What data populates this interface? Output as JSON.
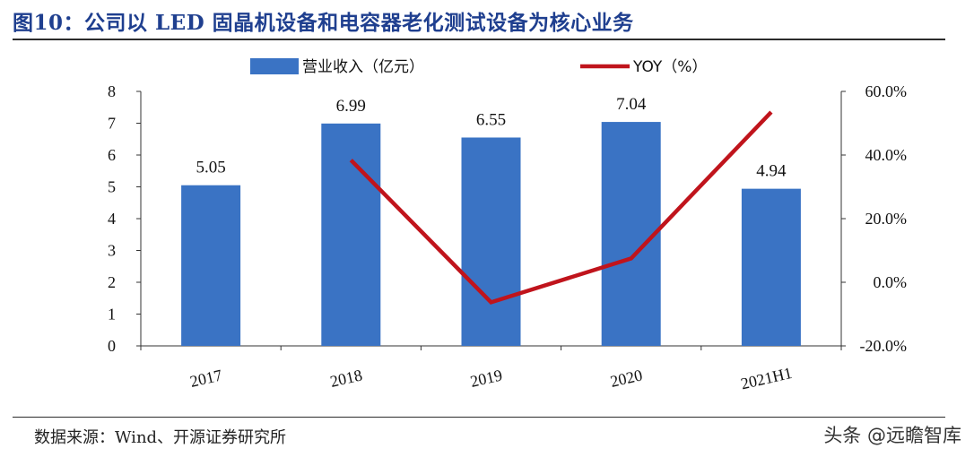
{
  "header": {
    "title": "图10：公司以 LED 固晶机设备和电容器老化测试设备为核心业务"
  },
  "footer": {
    "source": "数据来源：Wind、开源证券研究所",
    "watermark": "头条 @远瞻智库"
  },
  "colors": {
    "bar": "#3a73c4",
    "line": "#c0141c",
    "title": "#1f3f8f"
  },
  "chart_data": {
    "type": "bar+line",
    "categories": [
      "2017",
      "2018",
      "2019",
      "2020",
      "2021H1"
    ],
    "series": [
      {
        "name": "营业收入（亿元）",
        "type": "bar",
        "axis": "left",
        "values": [
          5.05,
          6.99,
          6.55,
          7.04,
          4.94
        ],
        "labels": [
          "5.05",
          "6.99",
          "6.55",
          "7.04",
          "4.94"
        ]
      },
      {
        "name": "YOY（%）",
        "type": "line",
        "axis": "right",
        "values": [
          null,
          38.4,
          -6.3,
          7.5,
          53.5
        ]
      }
    ],
    "y_left": {
      "ylim": [
        0,
        8
      ],
      "ticks": [
        "0",
        "1",
        "2",
        "3",
        "4",
        "5",
        "6",
        "7",
        "8"
      ]
    },
    "y_right": {
      "ylim": [
        -20,
        60
      ],
      "ticks": [
        "-20.0%",
        "0.0%",
        "20.0%",
        "40.0%",
        "60.0%"
      ]
    },
    "legend_position": "top-center",
    "grid": false
  }
}
